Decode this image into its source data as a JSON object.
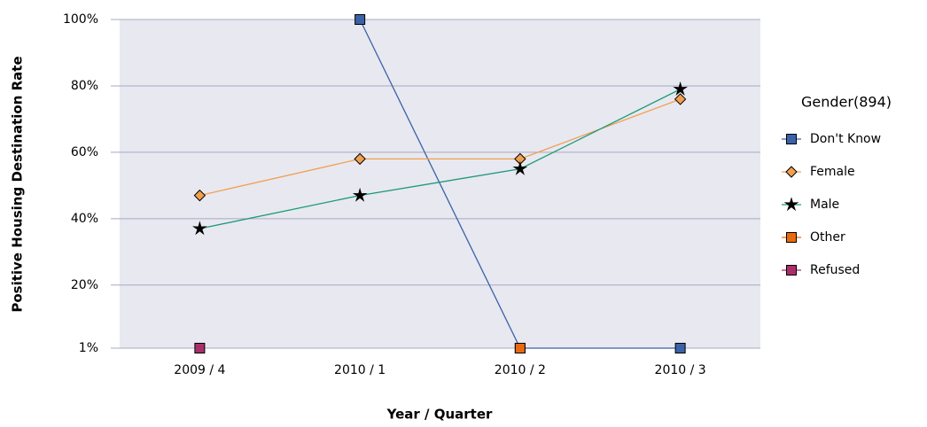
{
  "chart_data": {
    "type": "line",
    "x_label": "Year / Quarter",
    "y_label": "Positive Housing Destination Rate",
    "legend_title": "Gender(894)",
    "legend": "right",
    "grid": true,
    "categories": [
      "2009 / 4",
      "2010 / 1",
      "2010 / 2",
      "2010 / 3"
    ],
    "ylim": [
      1,
      100
    ],
    "yticks": [
      {
        "value": 1,
        "label": "1%"
      },
      {
        "value": 20,
        "label": "20%"
      },
      {
        "value": 40,
        "label": "40%"
      },
      {
        "value": 60,
        "label": "60%"
      },
      {
        "value": 80,
        "label": "80%"
      },
      {
        "value": 100,
        "label": "100%"
      }
    ],
    "series": [
      {
        "name": "Don't Know",
        "color": "#3a62a8",
        "marker": "square",
        "values": [
          null,
          100,
          1,
          1
        ]
      },
      {
        "name": "Female",
        "color": "#f0a050",
        "marker": "diamond",
        "values": [
          47,
          58,
          58,
          76
        ]
      },
      {
        "name": "Male",
        "color": "#1a9a78",
        "marker": "star",
        "values": [
          37,
          47,
          55,
          79
        ]
      },
      {
        "name": "Other",
        "color": "#e86a10",
        "marker": "square",
        "values": [
          null,
          null,
          1,
          null
        ]
      },
      {
        "name": "Refused",
        "color": "#a8306a",
        "marker": "square",
        "values": [
          1,
          null,
          null,
          null
        ]
      }
    ]
  }
}
